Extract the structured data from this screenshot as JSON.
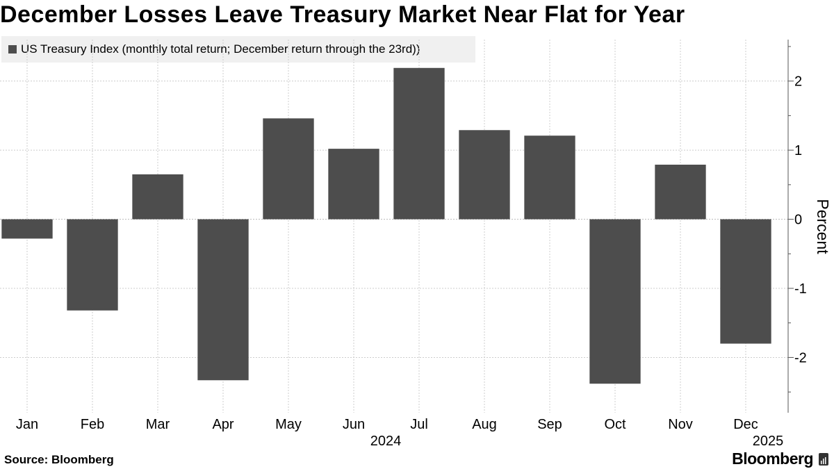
{
  "title": "December Losses Leave Treasury Market Near Flat for Year",
  "source": "Source: Bloomberg",
  "brand": "Bloomberg",
  "brand_icon": "bloomberg-terminal-icon",
  "colors": {
    "bar": "#4d4d4d",
    "legend_bg": "#f0f0f0",
    "grid": "#cccccc"
  },
  "chart_data": {
    "type": "bar",
    "legend": [
      "US Treasury Index (monthly total return; December return through the 23rd))"
    ],
    "categories": [
      "Jan",
      "Feb",
      "Mar",
      "Apr",
      "May",
      "Jun",
      "Jul",
      "Aug",
      "Sep",
      "Oct",
      "Nov",
      "Dec"
    ],
    "year_labels": [
      "2024",
      "2025"
    ],
    "series": [
      {
        "name": "US Treasury Index (monthly total return; December return through the 23rd))",
        "values": [
          -0.28,
          -1.32,
          0.65,
          -2.33,
          1.46,
          1.02,
          2.19,
          1.29,
          1.21,
          -2.38,
          0.79,
          -1.8
        ]
      }
    ],
    "ylabel": "Percent",
    "yticks": [
      2,
      1,
      0,
      -1,
      -2
    ],
    "ytick_labels": [
      "2",
      "1",
      "0",
      "-1",
      "-2"
    ],
    "ylim": [
      -2.8,
      2.6
    ],
    "grid": true,
    "y_axis_position": "right"
  }
}
